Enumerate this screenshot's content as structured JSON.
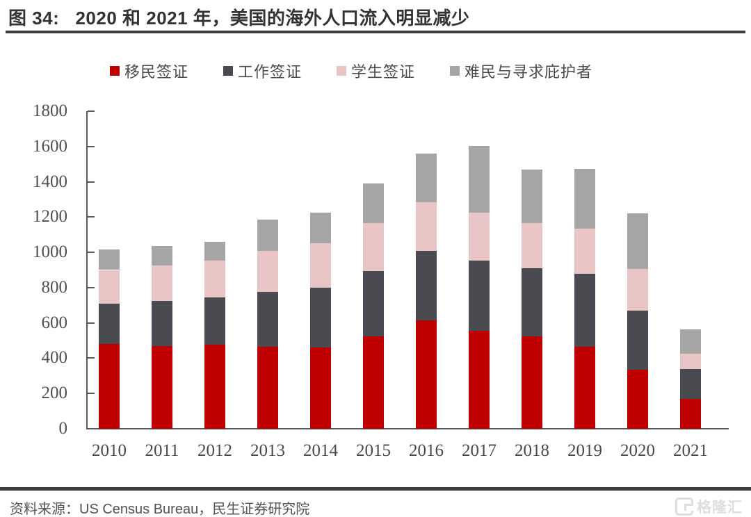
{
  "header": {
    "title": "图 34:   2020 和 2021 年，美国的海外人口流入明显减少"
  },
  "chart_data": {
    "type": "bar",
    "stacked": true,
    "title": "2020 和 2021 年，美国的海外人口流入明显减少",
    "categories": [
      "2010",
      "2011",
      "2012",
      "2013",
      "2014",
      "2015",
      "2016",
      "2017",
      "2018",
      "2019",
      "2020",
      "2021"
    ],
    "series": [
      {
        "name": "移民签证",
        "color": "#c00000",
        "values": [
          480,
          470,
          475,
          465,
          460,
          525,
          615,
          555,
          525,
          465,
          335,
          170
        ]
      },
      {
        "name": "工作签证",
        "color": "#494b50",
        "values": [
          230,
          255,
          270,
          310,
          340,
          370,
          395,
          400,
          385,
          415,
          335,
          170
        ]
      },
      {
        "name": "学生签证",
        "color": "#eac5c6",
        "values": [
          190,
          200,
          210,
          235,
          250,
          270,
          275,
          270,
          255,
          255,
          235,
          85
        ]
      },
      {
        "name": "难民与寻求庇护者",
        "color": "#a5a5a5",
        "values": [
          115,
          110,
          105,
          175,
          175,
          225,
          275,
          380,
          305,
          340,
          315,
          140
        ]
      }
    ],
    "totals": [
      1015,
      1035,
      1060,
      1185,
      1225,
      1390,
      1560,
      1605,
      1470,
      1475,
      1220,
      565
    ],
    "xlabel": "",
    "ylabel": "",
    "ylim": [
      0,
      1800
    ],
    "ytick_step": 200,
    "grid": false,
    "legend_position": "top",
    "axis_color": "#595959"
  },
  "footer": {
    "source": "资料来源：US Census Bureau，民生证券研究院",
    "logo_text": "格隆汇"
  }
}
